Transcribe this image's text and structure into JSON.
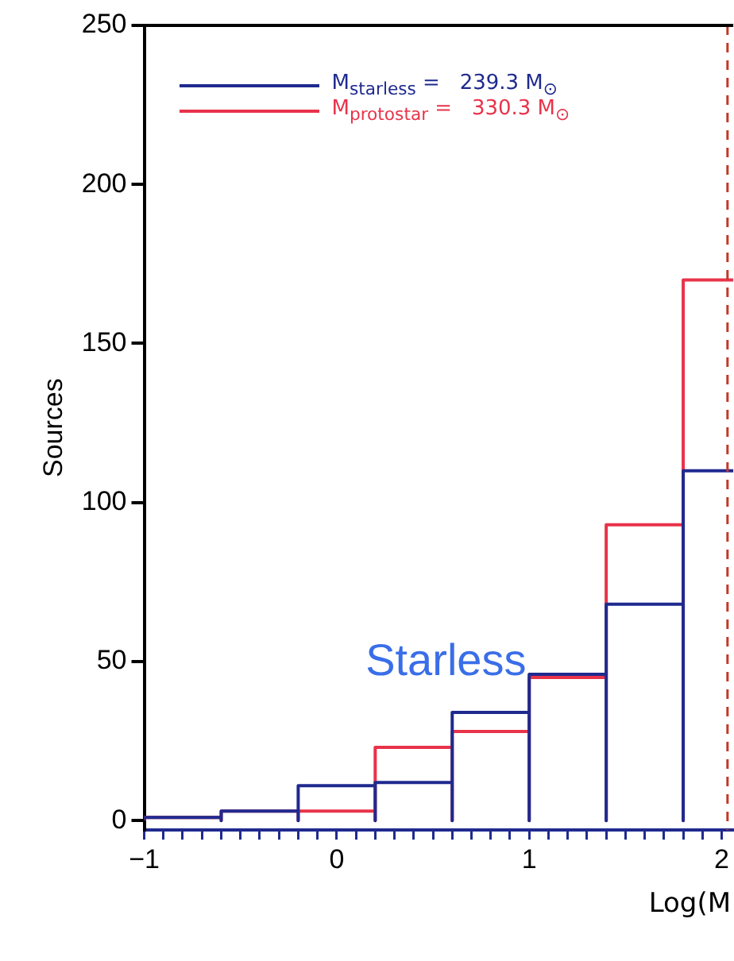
{
  "chart_data": {
    "type": "histogram",
    "xlabel": "Log(M",
    "ylabel": "Sources",
    "bins": [
      -1,
      -0.6,
      -0.2,
      0.2,
      0.6,
      1.0,
      1.4,
      1.8,
      2.2
    ],
    "series": [
      {
        "name": "M$_{protostar}$ =   330.3 M$_{⊙}$",
        "color": "#e8334a",
        "values": [
          1,
          3,
          3,
          23,
          28,
          45,
          93,
          170
        ]
      },
      {
        "name": "M$_{starless}$ =   239.3 M$_{⊙}$",
        "color": "#1f2a8f",
        "values": [
          1,
          3,
          11,
          12,
          34,
          46,
          68,
          110
        ]
      }
    ],
    "xlim": [
      -1,
      2.06
    ],
    "xticks": [
      -1,
      {
        "value": -0.9,
        "label": null
      },
      {
        "value": -0.8,
        "label": null
      },
      {
        "value": -0.7,
        "label": null
      },
      {
        "value": -0.6,
        "label": null
      },
      {
        "value": -0.5,
        "label": null
      },
      {
        "value": -0.4,
        "label": null
      },
      {
        "value": -0.3,
        "label": null
      },
      {
        "value": -0.2,
        "label": null
      },
      {
        "value": -0.1,
        "label": null
      },
      0,
      {
        "value": 0.1,
        "label": null
      },
      {
        "value": 0.2,
        "label": null
      },
      {
        "value": 0.3,
        "label": null
      },
      {
        "value": 0.4,
        "label": null
      },
      {
        "value": 0.5,
        "label": null
      },
      {
        "value": 0.6,
        "label": null
      },
      {
        "value": 0.7,
        "label": null
      },
      {
        "value": 0.8,
        "label": null
      },
      {
        "value": 0.9,
        "label": null
      },
      1,
      {
        "value": 1.1,
        "label": null
      },
      {
        "value": 1.2,
        "label": null
      },
      {
        "value": 1.3,
        "label": null
      },
      {
        "value": 1.4,
        "label": null
      },
      {
        "value": 1.5,
        "label": null
      },
      {
        "value": 1.6,
        "label": null
      },
      {
        "value": 1.7,
        "label": null
      },
      {
        "value": 1.8,
        "label": null
      },
      {
        "value": 1.9,
        "label": null
      },
      2
    ],
    "ylim": [
      -3,
      250
    ],
    "yticks": [
      0,
      50,
      100,
      150,
      200,
      250
    ],
    "ref_lines": [
      {
        "axis": "x",
        "value": 2.03,
        "color": "#c0392b",
        "line_style": "dashed"
      }
    ],
    "annotations": [
      "Starless"
    ],
    "legend": "top right",
    "grid": false
  }
}
